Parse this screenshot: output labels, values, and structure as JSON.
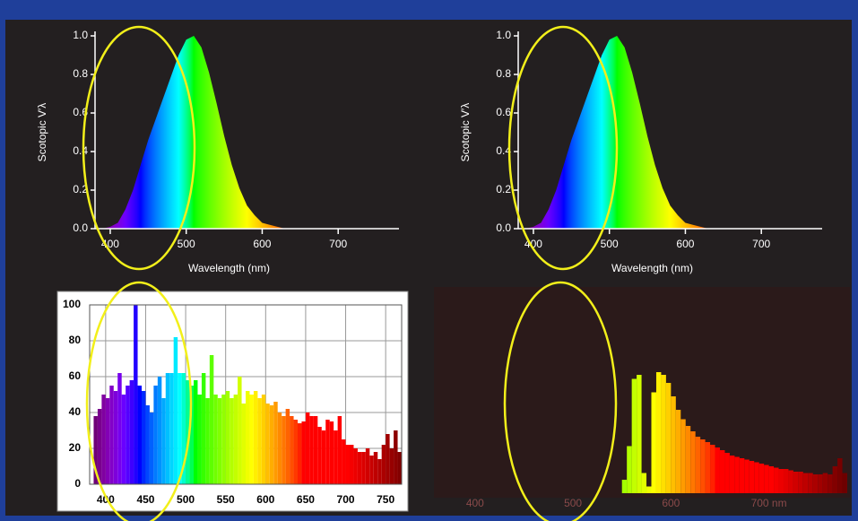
{
  "chart_data": [
    {
      "type": "area",
      "xlabel": "Wavelength (nm)",
      "ylabel": "Scotopic V′λ",
      "x": [
        390,
        400,
        410,
        420,
        430,
        440,
        450,
        460,
        470,
        480,
        490,
        500,
        510,
        520,
        530,
        540,
        550,
        560,
        570,
        580,
        590,
        600,
        610,
        620,
        630,
        640,
        650,
        660,
        670,
        680,
        690,
        700
      ],
      "values": [
        0.0,
        0.01,
        0.03,
        0.1,
        0.2,
        0.33,
        0.46,
        0.57,
        0.68,
        0.79,
        0.9,
        0.98,
        1.0,
        0.94,
        0.81,
        0.65,
        0.48,
        0.33,
        0.21,
        0.12,
        0.07,
        0.03,
        0.02,
        0.01,
        0.0,
        0.0,
        0.0,
        0.0,
        0.0,
        0.0,
        0.0,
        0.0
      ],
      "xlim": [
        380,
        780
      ],
      "ylim": [
        0,
        1
      ],
      "xticks": [
        400,
        500,
        600,
        700
      ],
      "yticks": [
        {
          "value": 0,
          "label": "0.0"
        },
        0.2,
        0.4,
        0.6,
        0.8,
        {
          "value": 1,
          "label": "1.0"
        }
      ]
    },
    {
      "type": "area",
      "xlabel": "Wavelength (nm)",
      "ylabel": "Scotopic V′λ",
      "x": [
        390,
        400,
        410,
        420,
        430,
        440,
        450,
        460,
        470,
        480,
        490,
        500,
        510,
        520,
        530,
        540,
        550,
        560,
        570,
        580,
        590,
        600,
        610,
        620,
        630,
        640,
        650,
        660,
        670,
        680,
        690,
        700
      ],
      "values": [
        0.0,
        0.01,
        0.03,
        0.1,
        0.2,
        0.33,
        0.46,
        0.57,
        0.68,
        0.79,
        0.9,
        0.98,
        1.0,
        0.94,
        0.81,
        0.65,
        0.48,
        0.33,
        0.21,
        0.12,
        0.07,
        0.03,
        0.02,
        0.01,
        0.0,
        0.0,
        0.0,
        0.0,
        0.0,
        0.0,
        0.0,
        0.0
      ],
      "xlim": [
        380,
        780
      ],
      "ylim": [
        0,
        1
      ],
      "xticks": [
        400,
        500,
        600,
        700
      ],
      "yticks": [
        {
          "value": 0,
          "label": "0.0"
        },
        0.2,
        0.4,
        0.6,
        0.8,
        {
          "value": 1,
          "label": "1.0"
        }
      ]
    },
    {
      "type": "bar",
      "x": [
        385,
        390,
        395,
        400,
        405,
        410,
        415,
        420,
        425,
        430,
        435,
        440,
        445,
        450,
        455,
        460,
        465,
        470,
        475,
        480,
        485,
        490,
        495,
        500,
        505,
        510,
        515,
        520,
        525,
        530,
        535,
        540,
        545,
        550,
        555,
        560,
        565,
        570,
        575,
        580,
        585,
        590,
        595,
        600,
        605,
        610,
        615,
        620,
        625,
        630,
        635,
        640,
        645,
        650,
        655,
        660,
        665,
        670,
        675,
        680,
        685,
        690,
        695,
        700,
        705,
        710,
        715,
        720,
        725,
        730,
        735,
        740,
        745,
        750,
        755,
        760,
        765
      ],
      "values": [
        38,
        42,
        50,
        48,
        55,
        52,
        62,
        50,
        55,
        58,
        100,
        55,
        52,
        44,
        40,
        55,
        60,
        48,
        62,
        62,
        82,
        62,
        62,
        58,
        55,
        58,
        50,
        62,
        48,
        72,
        50,
        48,
        50,
        52,
        48,
        50,
        60,
        45,
        52,
        50,
        52,
        48,
        50,
        45,
        44,
        46,
        40,
        38,
        42,
        38,
        36,
        34,
        35,
        40,
        38,
        38,
        32,
        30,
        36,
        35,
        30,
        38,
        25,
        22,
        22,
        20,
        18,
        18,
        20,
        16,
        18,
        14,
        22,
        28,
        20,
        30,
        18
      ],
      "xlim": [
        380,
        770
      ],
      "ylim": [
        0,
        100
      ],
      "xticks": [
        400,
        450,
        500,
        550,
        600,
        650,
        700,
        750
      ],
      "yticks": [
        0,
        20,
        40,
        60,
        80,
        100
      ],
      "grid": true
    },
    {
      "type": "bar",
      "x": [
        550,
        555,
        560,
        565,
        570,
        575,
        580,
        585,
        590,
        595,
        600,
        605,
        610,
        615,
        620,
        625,
        630,
        635,
        640,
        645,
        650,
        655,
        660,
        665,
        670,
        675,
        680,
        685,
        690,
        695,
        700,
        705,
        710,
        715,
        720,
        725,
        730,
        735,
        740,
        745,
        750,
        755,
        760,
        765,
        770,
        775
      ],
      "values": [
        10,
        35,
        85,
        88,
        15,
        5,
        75,
        90,
        88,
        82,
        72,
        62,
        55,
        50,
        46,
        42,
        40,
        38,
        36,
        34,
        32,
        30,
        28,
        27,
        26,
        25,
        24,
        23,
        22,
        21,
        20,
        19,
        18,
        18,
        17,
        16,
        16,
        15,
        15,
        14,
        14,
        15,
        14,
        20,
        26,
        15
      ],
      "xlim": [
        380,
        780
      ],
      "ylim": [
        0,
        100
      ],
      "xticks": [
        400,
        500,
        600,
        {
          "value": 700,
          "label": "700 nm"
        }
      ]
    }
  ]
}
